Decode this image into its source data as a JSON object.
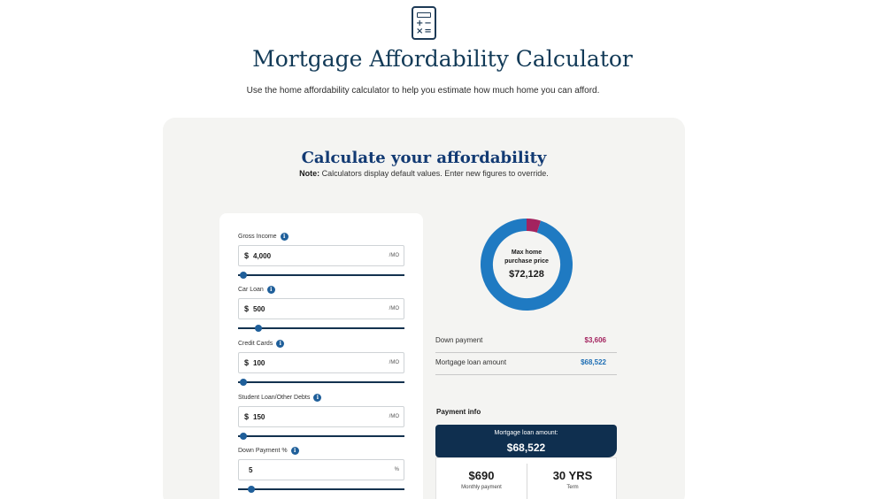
{
  "header": {
    "icon": "calculator-icon",
    "title": "Mortgage Affordability Calculator",
    "subtitle": "Use the home affordability calculator to help you estimate how much home you can afford."
  },
  "calculator": {
    "title": "Calculate your affordability",
    "note_label": "Note:",
    "note_text": " Calculators display default values. Enter new figures to override."
  },
  "inputs": [
    {
      "label": "Gross Income",
      "currency": "$",
      "value": "4,000",
      "unit": "/MO",
      "slider_fraction": 0.03
    },
    {
      "label": "Car Loan",
      "currency": "$",
      "value": "500",
      "unit": "/MO",
      "slider_fraction": 0.12
    },
    {
      "label": "Credit Cards",
      "currency": "$",
      "value": "100",
      "unit": "/MO",
      "slider_fraction": 0.03
    },
    {
      "label": "Student Loan/Other Debts",
      "currency": "$",
      "value": "150",
      "unit": "/MO",
      "slider_fraction": 0.03
    },
    {
      "label": "Down Payment %",
      "currency": "",
      "value": "5",
      "unit": "%",
      "slider_fraction": 0.08
    }
  ],
  "donut": {
    "label_line1": "Max home",
    "label_line2": "purchase price",
    "amount": "$72,128",
    "segments": [
      {
        "name": "Down payment",
        "value": 3606,
        "color": "#a3235f"
      },
      {
        "name": "Mortgage loan amount",
        "value": 68522,
        "color": "#1f7ac2"
      }
    ]
  },
  "summary": [
    {
      "label": "Down payment",
      "value": "$3,606",
      "color": "#a3235f"
    },
    {
      "label": "Mortgage loan amount",
      "value": "$68,522",
      "color": "#1f6fb5"
    }
  ],
  "payment": {
    "heading": "Payment info",
    "banner_label": "Mortgage loan amount:",
    "banner_value": "$68,522",
    "monthly_value": "$690",
    "monthly_label": "Monthly payment",
    "term_value": "30 YRS",
    "term_label": "Term"
  },
  "info_icon_glyph": "i"
}
